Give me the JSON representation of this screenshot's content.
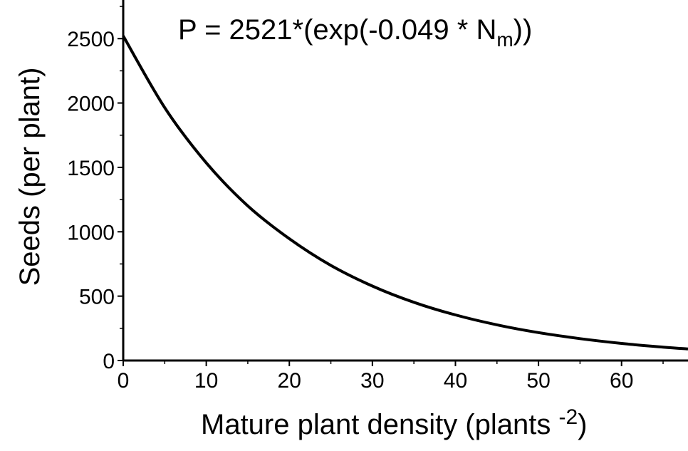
{
  "chart_data": {
    "type": "line",
    "equation": {
      "prefix": "P = 2521*(exp(-0.049 * N",
      "subscript": "m",
      "suffix": "))"
    },
    "xlabel": {
      "main": "Mature plant density (plants ",
      "superscript": "-2",
      "suffix": ")"
    },
    "ylabel": "Seeds (per plant)",
    "xlim": [
      0,
      68
    ],
    "ylim": [
      0,
      2800
    ],
    "x_ticks": [
      0,
      10,
      20,
      30,
      40,
      50,
      60
    ],
    "y_ticks": [
      0,
      500,
      1000,
      1500,
      2000,
      2500
    ],
    "x_tick_labels": [
      "0",
      "10",
      "20",
      "30",
      "40",
      "50",
      "60"
    ],
    "y_tick_labels": [
      "0",
      "500",
      "1000",
      "1500",
      "2000",
      "2500"
    ],
    "grid": false,
    "series": [
      {
        "color": "#000000",
        "x": [
          0,
          5,
          10,
          15,
          20,
          25,
          30,
          35,
          40,
          45,
          50,
          55,
          60,
          65,
          68
        ],
        "y": [
          2521,
          1964,
          1535,
          1201,
          946,
          739,
          578,
          452,
          354,
          277,
          217,
          170,
          133,
          104,
          90
        ]
      }
    ]
  }
}
